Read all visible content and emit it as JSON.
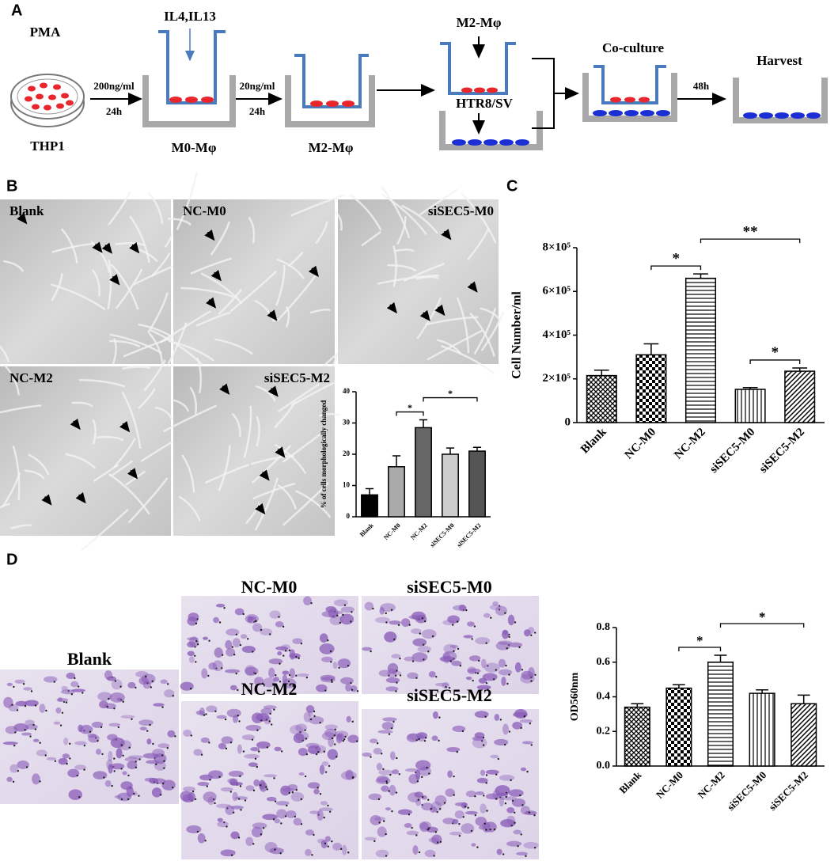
{
  "panel_labels": [
    "A",
    "B",
    "C",
    "D"
  ],
  "diagram": {
    "pma": "PMA",
    "thp1": "THP1",
    "step1_dose": "200ng/ml",
    "step1_time": "24h",
    "cytokines": "IL4,IL13",
    "m0": "M0-Mφ",
    "step2_dose": "20ng/ml",
    "step2_time": "24h",
    "m2": "M2-Mφ",
    "m2_insert": "M2-Mφ",
    "htr8": "HTR8/SV",
    "coculture": "Co-culture",
    "step3_time": "48h",
    "harvest": "Harvest"
  },
  "micrographs_b": [
    "Blank",
    "NC-M0",
    "siSEC5-M0",
    "NC-M2",
    "siSEC5-M2"
  ],
  "micrographs_d": [
    "Blank",
    "NC-M0",
    "siSEC5-M0",
    "NC-M2",
    "siSEC5-M2"
  ],
  "chart_data": [
    {
      "type": "bar",
      "y_label": "% of cells morphologically changed",
      "categories": [
        "Blank",
        "NC-M0",
        "NC-M2",
        "siSEC5-M0",
        "siSEC5-M2"
      ],
      "values": [
        7,
        16,
        28.5,
        20,
        21
      ],
      "errors": [
        2,
        3.5,
        2.5,
        2,
        1.2
      ],
      "colors": [
        "#000000",
        "#aaaaaa",
        "#666666",
        "#cccccc",
        "#555555"
      ],
      "ylim": [
        0,
        40
      ],
      "yticks": [
        0,
        10,
        20,
        30,
        40
      ],
      "annotations": [
        "*",
        "*"
      ]
    },
    {
      "type": "bar",
      "y_label": "Cell Number/ml",
      "categories": [
        "Blank",
        "NC-M0",
        "NC-M2",
        "siSEC5-M0",
        "siSEC5-M2"
      ],
      "values": [
        215000,
        310000,
        660000,
        152000,
        235000
      ],
      "errors": [
        25000,
        50000,
        20000,
        8000,
        15000
      ],
      "patterns": [
        "crosshatch",
        "checker",
        "horizontal",
        "vertical",
        "diagonal"
      ],
      "ylim": [
        0,
        800000
      ],
      "yticks": [
        0,
        {
          "value": 200000,
          "label": "2×10⁵"
        },
        {
          "value": 400000,
          "label": "4×10⁵"
        },
        {
          "value": 600000,
          "label": "6×10⁵"
        },
        {
          "value": 800000,
          "label": "8×10⁵"
        }
      ],
      "annotations": [
        "*",
        "**",
        "*"
      ]
    },
    {
      "type": "bar",
      "y_label": "OD560nm",
      "categories": [
        "Blank",
        "NC-M0",
        "NC-M2",
        "siSEC5-M0",
        "siSEC5-M2"
      ],
      "values": [
        0.34,
        0.45,
        0.6,
        0.42,
        0.36
      ],
      "errors": [
        0.02,
        0.02,
        0.04,
        0.02,
        0.05
      ],
      "patterns": [
        "crosshatch",
        "checker",
        "horizontal",
        "vertical",
        "diagonal"
      ],
      "ylim": [
        0,
        0.8
      ],
      "yticks": [
        {
          "value": 0,
          "label": "0.0"
        },
        0.2,
        0.4,
        0.6,
        0.8
      ],
      "annotations": [
        "*",
        "*"
      ]
    }
  ]
}
